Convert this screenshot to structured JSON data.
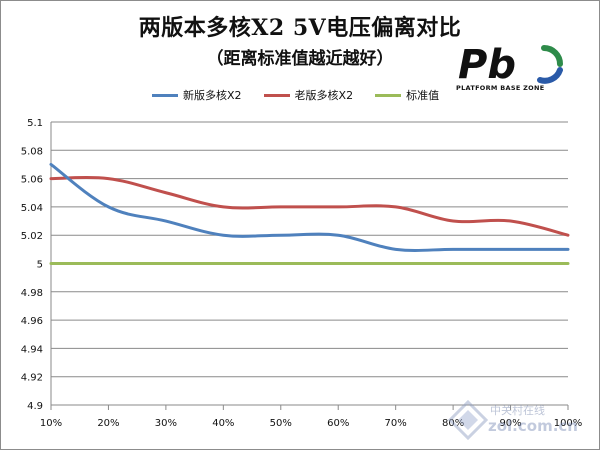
{
  "title": "两版本多核X2 5V电压偏离对比",
  "subtitle": "（距离标准值越近越好）",
  "logo": {
    "brand": "Pb",
    "text": "PLATFORM BASE ZONE",
    "colors": {
      "dark": "#111111",
      "green": "#2e8b4a",
      "blue": "#2a5aa8"
    }
  },
  "watermark": {
    "line1": "中关村在线",
    "line2": "zol.com.cn"
  },
  "chart_data": {
    "type": "line",
    "title": "两版本多核X2 5V电压偏离对比",
    "subtitle": "（距离标准值越近越好）",
    "categories": [
      "10%",
      "20%",
      "30%",
      "40%",
      "50%",
      "60%",
      "70%",
      "80%",
      "90%",
      "100%"
    ],
    "series": [
      {
        "name": "新版多核X2",
        "color": "#4f81bd",
        "values": [
          5.07,
          5.04,
          5.03,
          5.02,
          5.02,
          5.02,
          5.01,
          5.01,
          5.01,
          5.01
        ]
      },
      {
        "name": "老版多核X2",
        "color": "#c0504d",
        "values": [
          5.06,
          5.06,
          5.05,
          5.04,
          5.04,
          5.04,
          5.04,
          5.03,
          5.03,
          5.02
        ]
      },
      {
        "name": "标准值",
        "color": "#9bbb59",
        "values": [
          5,
          5,
          5,
          5,
          5,
          5,
          5,
          5,
          5,
          5
        ]
      }
    ],
    "ylim": [
      4.9,
      5.1
    ],
    "yticks": [
      "4.9",
      "4.92",
      "4.94",
      "4.96",
      "4.98",
      "5",
      "5.02",
      "5.04",
      "5.06",
      "5.08",
      "5.1"
    ],
    "grid": true,
    "legend_position": "top",
    "smooth": true
  }
}
